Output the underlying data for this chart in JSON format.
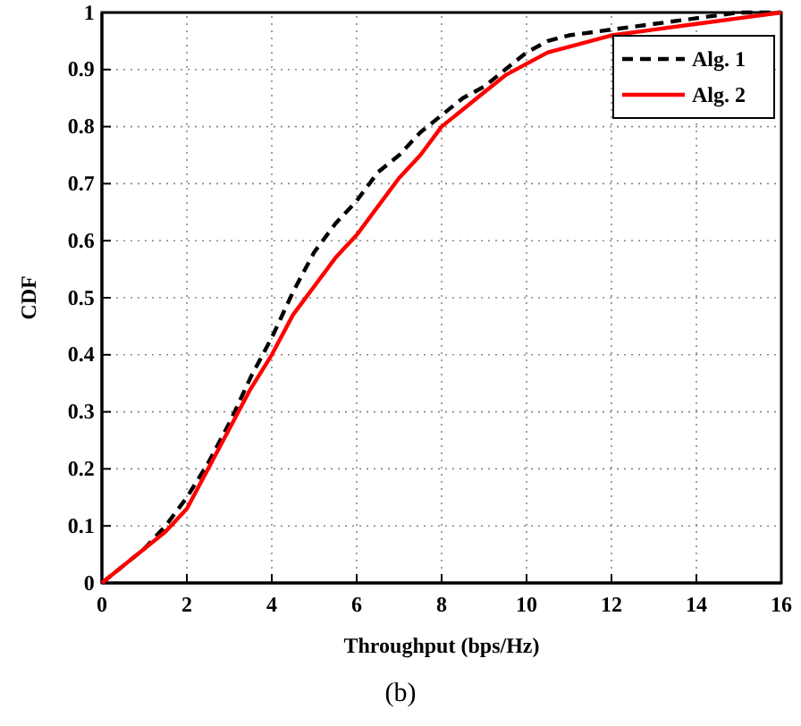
{
  "chart_data": {
    "type": "line",
    "xlabel": "Throughput (bps/Hz)",
    "ylabel": "CDF",
    "annotations": [
      "(b)"
    ],
    "xlim": [
      0,
      16
    ],
    "xticks": [
      0,
      2,
      4,
      6,
      8,
      10,
      12,
      14,
      16
    ],
    "ylim": [
      0,
      1
    ],
    "yticks": [
      0,
      0.1,
      0.2,
      0.3,
      0.4,
      0.5,
      0.6,
      0.7,
      0.8,
      0.9,
      1
    ],
    "grid": true,
    "legend": "top right",
    "x": [
      0,
      0.5,
      1,
      1.5,
      2,
      2.5,
      3,
      3.5,
      4,
      4.5,
      5,
      5.5,
      6,
      6.5,
      7,
      7.5,
      8,
      8.5,
      9,
      9.5,
      10,
      10.5,
      11,
      12,
      13,
      14,
      15,
      16
    ],
    "series": [
      {
        "name": "Alg. 1",
        "color": "#000000",
        "line_style": "dashed",
        "values": [
          0,
          0.03,
          0.06,
          0.1,
          0.15,
          0.21,
          0.28,
          0.36,
          0.43,
          0.51,
          0.58,
          0.63,
          0.67,
          0.72,
          0.75,
          0.79,
          0.82,
          0.85,
          0.87,
          0.9,
          0.93,
          0.95,
          0.96,
          0.97,
          0.98,
          0.99,
          1,
          1
        ]
      },
      {
        "name": "Alg. 2",
        "color": "#ff0000",
        "line_style": "solid",
        "values": [
          0,
          0.03,
          0.06,
          0.09,
          0.13,
          0.2,
          0.27,
          0.34,
          0.4,
          0.47,
          0.52,
          0.57,
          0.61,
          0.66,
          0.71,
          0.75,
          0.8,
          0.83,
          0.86,
          0.89,
          0.91,
          0.93,
          0.94,
          0.96,
          0.97,
          0.98,
          0.99,
          1
        ]
      }
    ]
  }
}
